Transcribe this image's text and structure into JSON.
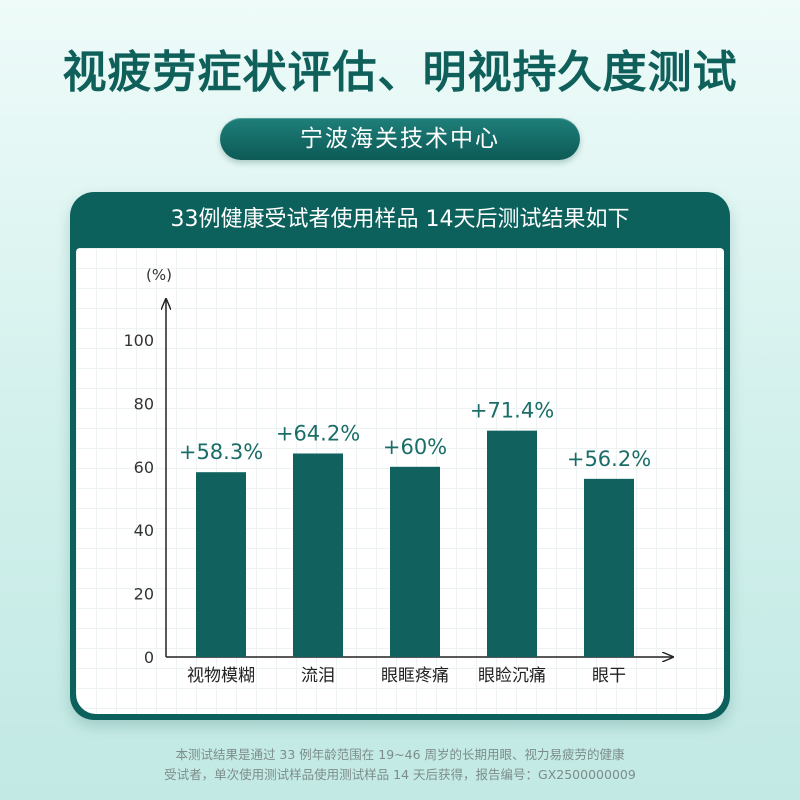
{
  "title": "视疲劳症状评估、明视持久度测试",
  "badge": "宁波海关技术中心",
  "panel_header": "33例健康受试者使用样品 14天后测试结果如下",
  "footnote": {
    "line1": "本测试结果是通过 33 例年龄范围在 19~46 周岁的长期用眼、视力易疲劳的健康",
    "line2": "受试者，单次使用测试样品使用测试样品 14 天后获得，报告编号：GX2500000009"
  },
  "colors": {
    "bar": "#11625e",
    "bar_label": "#1a6e67",
    "axis": "#222222",
    "accent": "#0d615c"
  },
  "chart_data": {
    "type": "bar",
    "categories": [
      "视物模糊",
      "流泪",
      "眼眶疼痛",
      "眼睑沉痛",
      "眼干"
    ],
    "values": [
      58.3,
      64.2,
      60,
      71.4,
      56.2
    ],
    "value_labels": [
      "+58.3%",
      "+64.2%",
      "+60%",
      "+71.4%",
      "+56.2%"
    ],
    "ylabel": "(%)",
    "xlabel": "",
    "ylim": [
      0,
      100
    ],
    "yticks": [
      0,
      20,
      40,
      60,
      80,
      100
    ],
    "grid": true
  }
}
